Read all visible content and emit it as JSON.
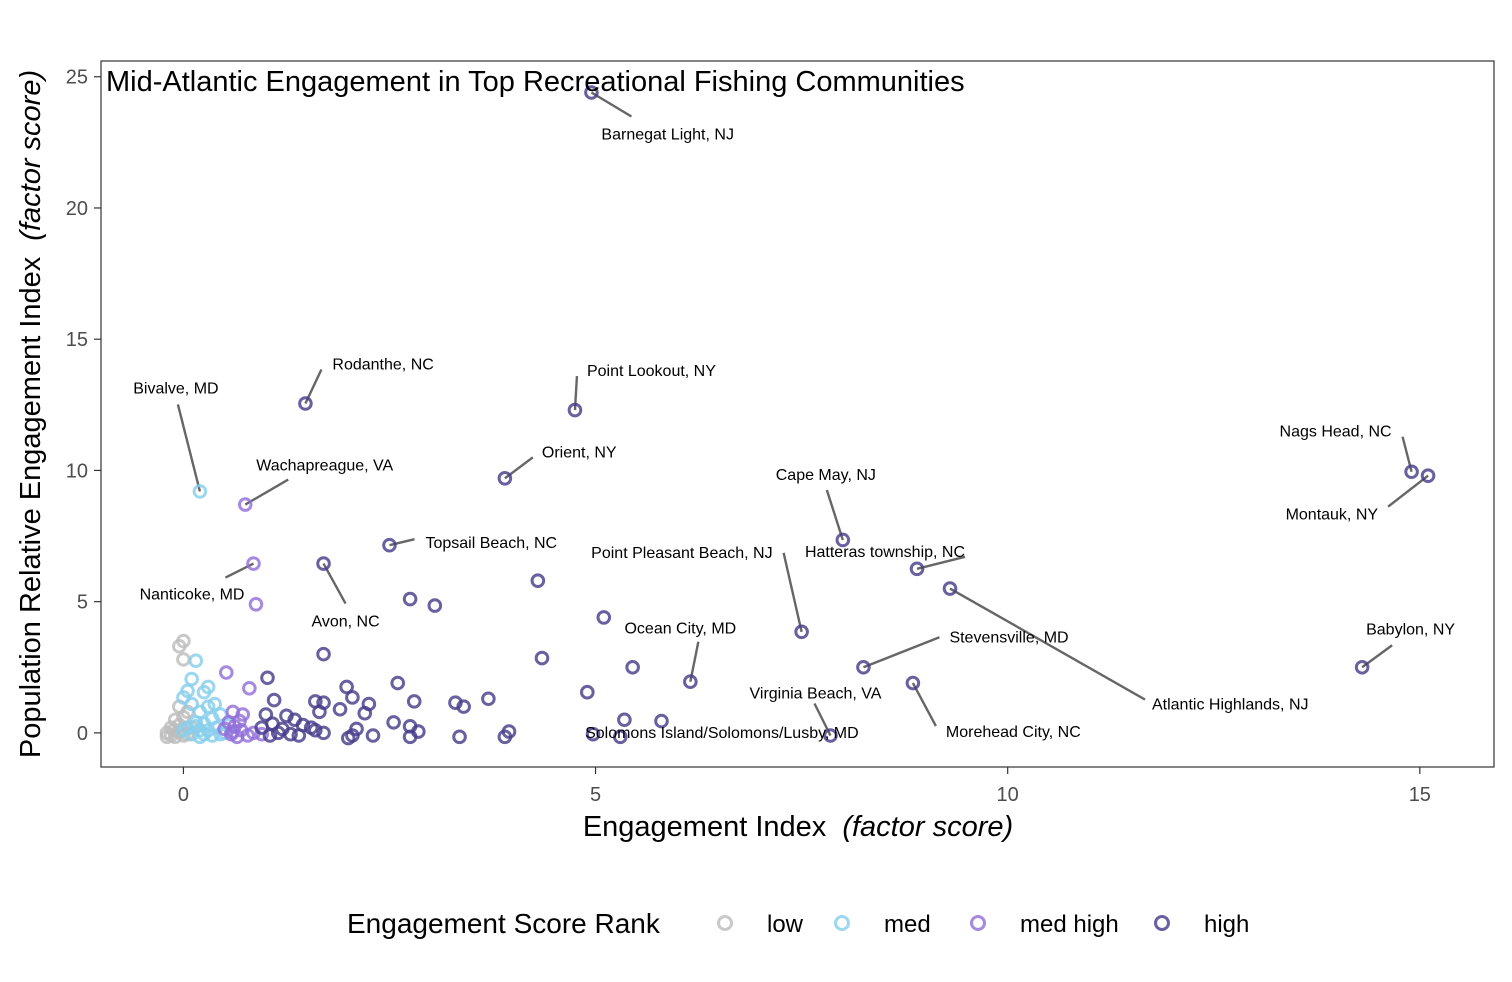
{
  "chart_data": {
    "type": "scatter",
    "title": "Mid-Atlantic Engagement in Top Recreational Fishing Communities",
    "xlabel": "Engagement Index",
    "xlabel_italic": "(factor score)",
    "ylabel": "Population Relative Engagement Index",
    "ylabel_italic": "(factor score)",
    "xlim": [
      -1,
      15.9
    ],
    "ylim": [
      -1.3,
      25.6
    ],
    "x_ticks": [
      0,
      5,
      10,
      15
    ],
    "y_ticks": [
      0,
      5,
      10,
      15,
      20,
      25
    ],
    "grid": false,
    "legend": {
      "title": "Engagement Score Rank",
      "position": "bottom",
      "entries": [
        {
          "name": "low",
          "color": "#bdbdbd"
        },
        {
          "name": "med",
          "color": "#87ceeb"
        },
        {
          "name": "med high",
          "color": "#9370db"
        },
        {
          "name": "high",
          "color": "#483d8b"
        }
      ]
    },
    "series": [
      {
        "name": "low",
        "color": "#bdbdbd",
        "points": [
          [
            0.0,
            3.5
          ],
          [
            -0.05,
            3.3
          ],
          [
            0.0,
            2.8
          ],
          [
            -0.05,
            1.0
          ],
          [
            0.05,
            0.8
          ],
          [
            -0.1,
            0.5
          ],
          [
            0.0,
            0.6
          ],
          [
            -0.15,
            0.2
          ],
          [
            -0.05,
            0.3
          ],
          [
            0.1,
            0.2
          ],
          [
            -0.2,
            0.0
          ],
          [
            -0.15,
            -0.1
          ],
          [
            -0.1,
            -0.15
          ],
          [
            -0.05,
            0.05
          ],
          [
            0.0,
            -0.1
          ],
          [
            -0.2,
            -0.15
          ],
          [
            -0.12,
            0.1
          ],
          [
            0.05,
            -0.05
          ]
        ]
      },
      {
        "name": "med",
        "color": "#87ceeb",
        "points": [
          [
            0.2,
            9.2
          ],
          [
            0.15,
            2.75
          ],
          [
            0.1,
            2.05
          ],
          [
            0.3,
            1.75
          ],
          [
            0.25,
            1.55
          ],
          [
            0.05,
            1.6
          ],
          [
            0.0,
            1.35
          ],
          [
            0.1,
            1.1
          ],
          [
            0.2,
            0.8
          ],
          [
            0.35,
            0.55
          ],
          [
            0.3,
            1.0
          ],
          [
            0.45,
            0.7
          ],
          [
            0.15,
            0.4
          ],
          [
            0.25,
            0.35
          ],
          [
            0.05,
            0.2
          ],
          [
            0.2,
            0.1
          ],
          [
            0.1,
            -0.05
          ],
          [
            0.3,
            0.1
          ],
          [
            0.4,
            0.2
          ],
          [
            0.35,
            -0.1
          ],
          [
            0.5,
            0.0
          ],
          [
            0.2,
            -0.15
          ],
          [
            0.15,
            0.25
          ],
          [
            0.45,
            -0.05
          ],
          [
            0.55,
            0.3
          ],
          [
            0.0,
            0.1
          ],
          [
            0.25,
            -0.05
          ],
          [
            0.38,
            1.1
          ]
        ]
      },
      {
        "name": "med high",
        "color": "#9370db",
        "points": [
          [
            0.75,
            8.7
          ],
          [
            0.85,
            6.45
          ],
          [
            0.88,
            4.9
          ],
          [
            0.52,
            2.3
          ],
          [
            0.8,
            1.7
          ],
          [
            0.6,
            0.8
          ],
          [
            0.72,
            0.7
          ],
          [
            0.55,
            0.4
          ],
          [
            0.62,
            0.25
          ],
          [
            0.7,
            0.1
          ],
          [
            0.58,
            -0.05
          ],
          [
            0.65,
            -0.15
          ],
          [
            0.85,
            0.0
          ],
          [
            0.95,
            -0.05
          ],
          [
            0.5,
            0.15
          ],
          [
            0.68,
            0.45
          ],
          [
            0.78,
            -0.1
          ],
          [
            0.6,
            0.05
          ]
        ]
      },
      {
        "name": "high",
        "color": "#483d8b",
        "points": [
          [
            4.95,
            24.4
          ],
          [
            1.48,
            12.55
          ],
          [
            4.75,
            12.3
          ],
          [
            3.9,
            9.7
          ],
          [
            14.9,
            9.95
          ],
          [
            15.1,
            9.8
          ],
          [
            8.0,
            7.35
          ],
          [
            2.5,
            7.15
          ],
          [
            1.7,
            6.45
          ],
          [
            8.9,
            6.25
          ],
          [
            9.3,
            5.5
          ],
          [
            4.3,
            5.8
          ],
          [
            2.75,
            5.1
          ],
          [
            3.05,
            4.85
          ],
          [
            5.1,
            4.4
          ],
          [
            7.5,
            3.85
          ],
          [
            1.7,
            3.0
          ],
          [
            4.35,
            2.85
          ],
          [
            5.45,
            2.5
          ],
          [
            8.25,
            2.5
          ],
          [
            14.3,
            2.5
          ],
          [
            6.15,
            1.95
          ],
          [
            8.85,
            1.9
          ],
          [
            1.02,
            2.1
          ],
          [
            2.6,
            1.9
          ],
          [
            1.98,
            1.75
          ],
          [
            4.9,
            1.55
          ],
          [
            3.7,
            1.3
          ],
          [
            1.1,
            1.25
          ],
          [
            2.8,
            1.2
          ],
          [
            3.3,
            1.15
          ],
          [
            3.4,
            1.0
          ],
          [
            2.25,
            1.1
          ],
          [
            2.2,
            0.75
          ],
          [
            1.6,
            1.2
          ],
          [
            1.7,
            1.15
          ],
          [
            2.05,
            1.35
          ],
          [
            1.9,
            0.9
          ],
          [
            1.65,
            0.8
          ],
          [
            1.35,
            0.5
          ],
          [
            1.25,
            0.65
          ],
          [
            1.0,
            0.7
          ],
          [
            1.08,
            0.35
          ],
          [
            1.2,
            0.15
          ],
          [
            1.45,
            0.3
          ],
          [
            1.55,
            0.2
          ],
          [
            1.6,
            0.1
          ],
          [
            1.3,
            -0.05
          ],
          [
            1.05,
            -0.1
          ],
          [
            0.95,
            0.2
          ],
          [
            1.7,
            0.0
          ],
          [
            2.1,
            0.15
          ],
          [
            2.3,
            -0.1
          ],
          [
            2.55,
            0.4
          ],
          [
            2.75,
            0.25
          ],
          [
            2.85,
            0.05
          ],
          [
            3.35,
            -0.15
          ],
          [
            3.95,
            0.05
          ],
          [
            3.9,
            -0.15
          ],
          [
            5.35,
            0.5
          ],
          [
            5.8,
            0.45
          ],
          [
            4.97,
            -0.05
          ],
          [
            5.3,
            -0.15
          ],
          [
            7.85,
            -0.1
          ],
          [
            2.05,
            -0.1
          ],
          [
            2.0,
            -0.2
          ],
          [
            2.75,
            -0.15
          ],
          [
            1.15,
            0.0
          ],
          [
            1.4,
            -0.1
          ]
        ]
      }
    ],
    "annotations": [
      {
        "label": "Barnegat Light, NJ",
        "x": 4.95,
        "y": 24.4
      },
      {
        "label": "Rodanthe, NC",
        "x": 1.48,
        "y": 12.55
      },
      {
        "label": "Point Lookout, NY",
        "x": 4.75,
        "y": 12.3
      },
      {
        "label": "Bivalve, MD",
        "x": 0.2,
        "y": 9.2
      },
      {
        "label": "Orient, NY",
        "x": 3.9,
        "y": 9.7
      },
      {
        "label": "Wachapreague, VA",
        "x": 0.75,
        "y": 8.7
      },
      {
        "label": "Nags Head, NC",
        "x": 14.9,
        "y": 9.95
      },
      {
        "label": "Montauk, NY",
        "x": 15.1,
        "y": 9.8
      },
      {
        "label": "Cape May, NJ",
        "x": 8.0,
        "y": 7.35
      },
      {
        "label": "Topsail Beach, NC",
        "x": 2.5,
        "y": 7.15
      },
      {
        "label": "Nanticoke, MD",
        "x": 0.85,
        "y": 6.45
      },
      {
        "label": "Avon, NC",
        "x": 1.7,
        "y": 6.45
      },
      {
        "label": "Point Pleasant Beach, NJ",
        "x": 7.5,
        "y": 3.85
      },
      {
        "label": "Hatteras township, NC",
        "x": 8.9,
        "y": 6.25
      },
      {
        "label": "Atlantic Highlands, NJ",
        "x": 9.3,
        "y": 5.5
      },
      {
        "label": "Ocean City, MD",
        "x": 6.15,
        "y": 1.95
      },
      {
        "label": "Stevensville, MD",
        "x": 8.25,
        "y": 2.5
      },
      {
        "label": "Babylon, NY",
        "x": 14.3,
        "y": 2.5
      },
      {
        "label": "Virginia Beach, VA",
        "x": 7.85,
        "y": -0.1
      },
      {
        "label": "Morehead City, NC",
        "x": 8.85,
        "y": 1.9
      },
      {
        "label": "Solomons Island/Solomons/Lusby, MD",
        "x": 4.97,
        "y": -0.05
      }
    ]
  }
}
